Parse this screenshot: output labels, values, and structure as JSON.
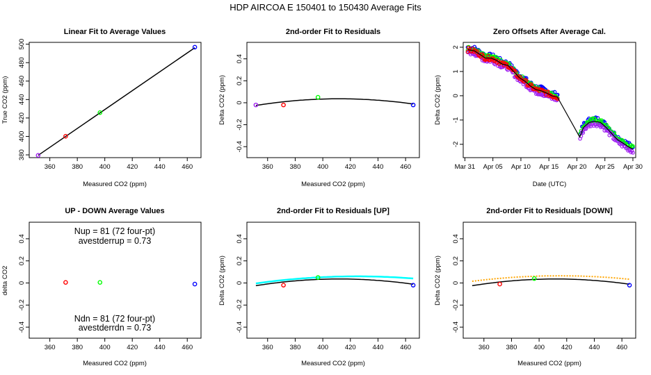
{
  "suptitle": "HDP   AIRCOA E   150401 to 150430   Average Fits",
  "colors": {
    "purple": "#a020f0",
    "red": "#ff0000",
    "green": "#00ff00",
    "blue": "#0000ff",
    "black": "#000000",
    "cyan": "#00ffff",
    "orange": "#ffa500",
    "violet": "#ee82ee"
  },
  "chart_data": [
    {
      "id": "p1",
      "type": "line",
      "title": "Linear Fit to Average Values",
      "xlabel": "Measured CO2 (ppm)",
      "ylabel": "True CO2 (ppm)",
      "xlim": [
        345,
        470
      ],
      "ylim": [
        377,
        502
      ],
      "xticks": [
        360,
        380,
        400,
        420,
        440,
        460
      ],
      "yticks": [
        380,
        400,
        420,
        440,
        460,
        480,
        500
      ],
      "points": [
        {
          "x": 351.5,
          "y": 379.5,
          "color": "purple"
        },
        {
          "x": 371.5,
          "y": 400.2,
          "color": "red"
        },
        {
          "x": 396.5,
          "y": 425.8,
          "color": "green"
        },
        {
          "x": 465.5,
          "y": 496.8,
          "color": "blue"
        }
      ],
      "fit": {
        "x0": 351.5,
        "x1": 465.5,
        "slope": 1.0236,
        "intercept": 19.7,
        "color": "black"
      }
    },
    {
      "id": "p2",
      "type": "scatter",
      "title": "2nd-order Fit to Residuals",
      "xlabel": "Measured CO2 (ppm)",
      "ylabel": "Delta CO2 (ppm)",
      "xlim": [
        345,
        470
      ],
      "ylim": [
        -0.5,
        0.55
      ],
      "xticks": [
        360,
        380,
        400,
        420,
        440,
        460
      ],
      "yticks": [
        -0.4,
        -0.2,
        0.0,
        0.2,
        0.4
      ],
      "points": [
        {
          "x": 351.5,
          "y": -0.02,
          "color": "purple"
        },
        {
          "x": 371.5,
          "y": -0.02,
          "color": "red"
        },
        {
          "x": 396.5,
          "y": 0.05,
          "color": "green"
        },
        {
          "x": 465.5,
          "y": -0.02,
          "color": "blue"
        }
      ],
      "curves": [
        {
          "from": 351.5,
          "to": 465.5,
          "vertex_x": 412,
          "vertex_y": 0.036,
          "a": -1.66e-05,
          "color": "black",
          "style": "solid"
        }
      ]
    },
    {
      "id": "p3",
      "type": "line",
      "title": "Zero Offsets After Average Cal.",
      "xlabel": "Date (UTC)",
      "ylabel": "Delta CO2 (ppm)",
      "xlim": [
        0,
        30.8
      ],
      "ylim": [
        -2.55,
        2.2
      ],
      "xticks_labels": [
        {
          "x": 0.3,
          "label": "Mar 31"
        },
        {
          "x": 5.3,
          "label": "Apr 05"
        },
        {
          "x": 10.3,
          "label": "Apr 10"
        },
        {
          "x": 15.3,
          "label": "Apr 15"
        },
        {
          "x": 20.3,
          "label": "Apr 20"
        },
        {
          "x": 25.3,
          "label": "Apr 25"
        },
        {
          "x": 30.3,
          "label": "Apr 30"
        }
      ],
      "yticks": [
        -2,
        -1,
        0,
        1,
        2
      ],
      "offsets": [
        {
          "x": 0.8,
          "y": 1.9
        },
        {
          "x": 2.0,
          "y": 1.85
        },
        {
          "x": 3.0,
          "y": 1.7
        },
        {
          "x": 4.0,
          "y": 1.55
        },
        {
          "x": 5.0,
          "y": 1.55
        },
        {
          "x": 6.0,
          "y": 1.45
        },
        {
          "x": 7.0,
          "y": 1.3
        },
        {
          "x": 8.0,
          "y": 1.25
        },
        {
          "x": 9.0,
          "y": 1.0
        },
        {
          "x": 10.0,
          "y": 0.75
        },
        {
          "x": 11.0,
          "y": 0.6
        },
        {
          "x": 12.0,
          "y": 0.4
        },
        {
          "x": 13.0,
          "y": 0.25
        },
        {
          "x": 14.0,
          "y": 0.2
        },
        {
          "x": 15.0,
          "y": 0.1
        },
        {
          "x": 15.8,
          "y": 0.0
        },
        {
          "x": 16.8,
          "y": -0.05
        },
        {
          "x": 20.8,
          "y": -1.7
        },
        {
          "x": 21.5,
          "y": -1.3
        },
        {
          "x": 22.5,
          "y": -1.1
        },
        {
          "x": 23.5,
          "y": -1.05
        },
        {
          "x": 24.5,
          "y": -1.1
        },
        {
          "x": 25.5,
          "y": -1.3
        },
        {
          "x": 26.5,
          "y": -1.55
        },
        {
          "x": 27.5,
          "y": -1.8
        },
        {
          "x": 28.5,
          "y": -1.95
        },
        {
          "x": 29.5,
          "y": -2.1
        },
        {
          "x": 30.3,
          "y": -2.2
        }
      ],
      "series_offsets": {
        "blue": 0.1,
        "green": 0.05,
        "purple": -0.1,
        "red": 0.0
      }
    },
    {
      "id": "p4",
      "type": "scatter",
      "title": "UP - DOWN Average Values",
      "xlabel": "Measured CO2 (ppm)",
      "ylabel": "delta CO2",
      "xlim": [
        345,
        470
      ],
      "ylim": [
        -0.5,
        0.55
      ],
      "xticks": [
        360,
        380,
        400,
        420,
        440,
        460
      ],
      "yticks": [
        -0.4,
        -0.2,
        0.0,
        0.2,
        0.4
      ],
      "points": [
        {
          "x": 371.5,
          "y": 0.005,
          "color": "red"
        },
        {
          "x": 396.5,
          "y": 0.005,
          "color": "green"
        },
        {
          "x": 465.5,
          "y": -0.01,
          "color": "blue"
        }
      ],
      "annotations": {
        "up1": "Nup = 81 (72 four-pt)",
        "up2": "avestderrup =  0.73",
        "dn1": "Ndn = 81 (72 four-pt)",
        "dn2": "avestderrdn =  0.73"
      }
    },
    {
      "id": "p5",
      "type": "scatter",
      "title": "2nd-order Fit to Residuals [UP]",
      "xlabel": "Measured CO2 (ppm)",
      "ylabel": "Delta CO2 (ppm)",
      "xlim": [
        345,
        470
      ],
      "ylim": [
        -0.5,
        0.55
      ],
      "xticks": [
        360,
        380,
        400,
        420,
        440,
        460
      ],
      "yticks": [
        -0.4,
        -0.2,
        0.0,
        0.2,
        0.4
      ],
      "points": [
        {
          "x": 371.5,
          "y": -0.02,
          "color": "red"
        },
        {
          "x": 396.5,
          "y": 0.05,
          "color": "green"
        },
        {
          "x": 465.5,
          "y": -0.02,
          "color": "blue"
        }
      ],
      "curves": [
        {
          "from": 351.5,
          "to": 465.5,
          "vertex_x": 412,
          "vertex_y": 0.036,
          "a": -1.66e-05,
          "color": "black",
          "style": "solid"
        },
        {
          "from": 351.5,
          "to": 465.5,
          "vertex_x": 425,
          "vertex_y": 0.06,
          "a": -1.18e-05,
          "color": "cyan",
          "style": "thick"
        }
      ]
    },
    {
      "id": "p6",
      "type": "scatter",
      "title": "2nd-order Fit to Residuals [DOWN]",
      "xlabel": "Measured CO2 (ppm)",
      "ylabel": "Delta CO2 (ppm)",
      "xlim": [
        345,
        470
      ],
      "ylim": [
        -0.5,
        0.55
      ],
      "xticks": [
        360,
        380,
        400,
        420,
        440,
        460
      ],
      "yticks": [
        -0.4,
        -0.2,
        0.0,
        0.2,
        0.4
      ],
      "points": [
        {
          "x": 371.5,
          "y": -0.01,
          "color": "red"
        },
        {
          "x": 396.5,
          "y": 0.04,
          "color": "green"
        },
        {
          "x": 465.5,
          "y": -0.02,
          "color": "blue"
        }
      ],
      "curves": [
        {
          "from": 351.5,
          "to": 465.5,
          "vertex_x": 412,
          "vertex_y": 0.036,
          "a": -1.66e-05,
          "color": "black",
          "style": "solid"
        },
        {
          "from": 351.5,
          "to": 465.5,
          "vertex_x": 415,
          "vertex_y": 0.065,
          "a": -1.23e-05,
          "color": "orange",
          "style": "dotted"
        }
      ]
    }
  ]
}
